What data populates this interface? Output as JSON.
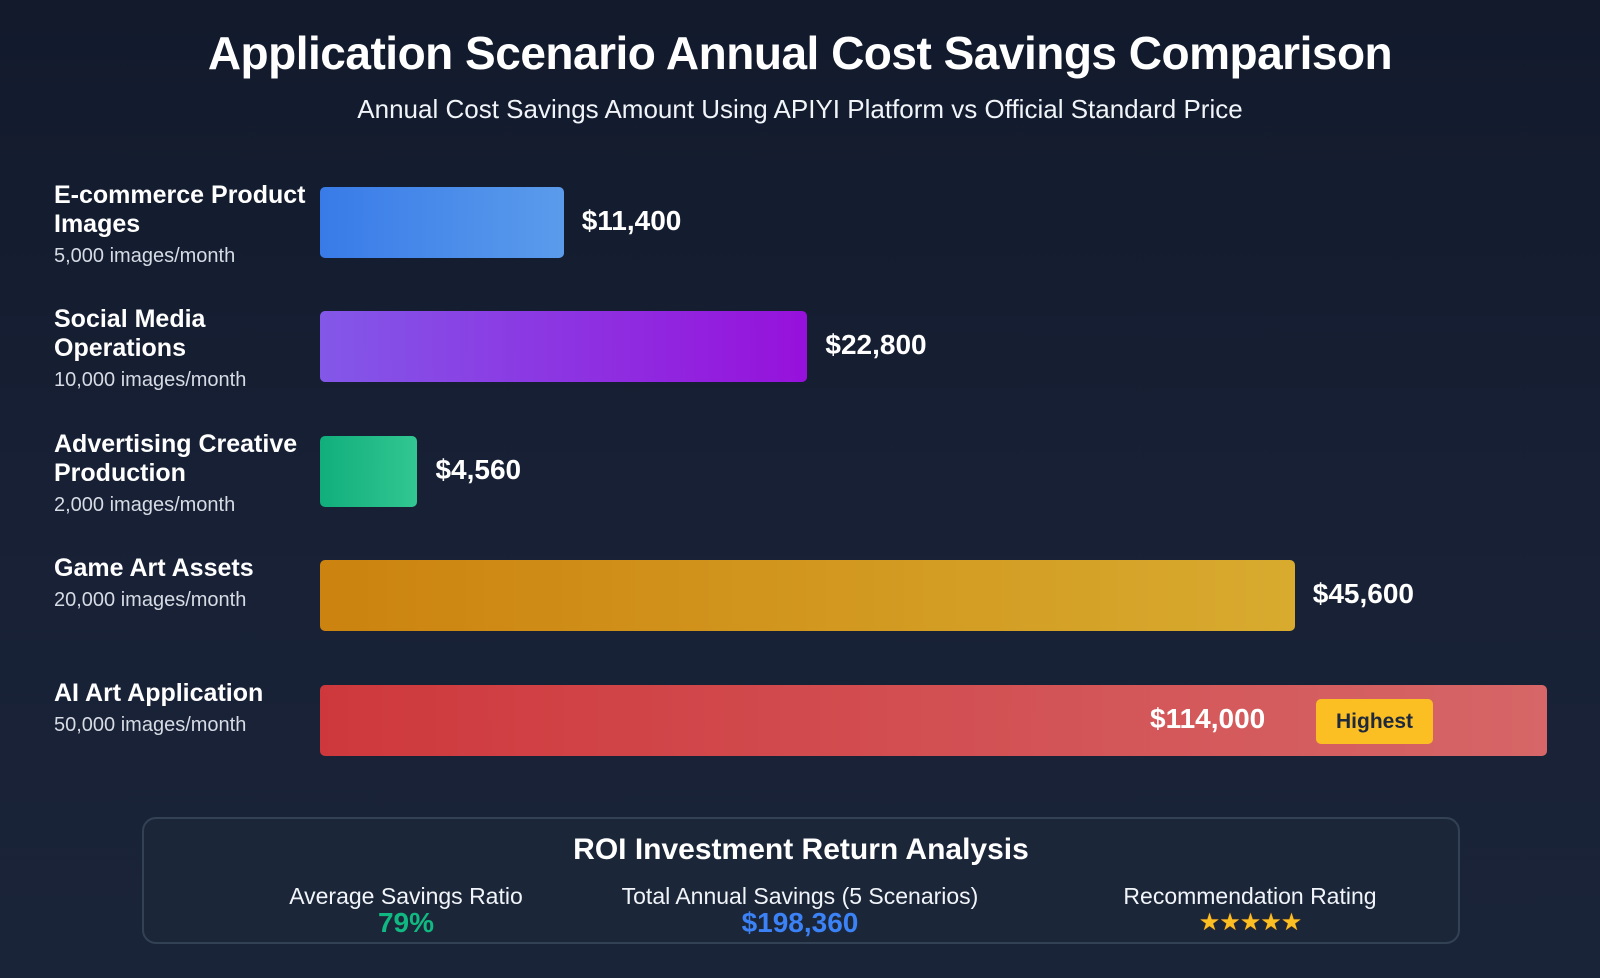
{
  "chart_data": {
    "type": "bar",
    "orientation": "horizontal",
    "title": "Application Scenario Annual Cost Savings Comparison",
    "subtitle": "Annual Cost Savings Amount Using APIYI Platform vs Official Standard Price",
    "categories": [
      "E-commerce Product Images",
      "Social Media Operations",
      "Advertising Creative Production",
      "Game Art Assets",
      "AI Art Application"
    ],
    "volumes": [
      "5,000 images/month",
      "10,000 images/month",
      "2,000 images/month",
      "20,000 images/month",
      "50,000 images/month"
    ],
    "values": [
      11400,
      22800,
      4560,
      45600,
      114000
    ],
    "value_labels": [
      "$11,400",
      "$22,800",
      "$4,560",
      "$45,600",
      "$114,000"
    ],
    "colors": [
      [
        "#3b82f6",
        "#60a5fa"
      ],
      [
        "#8b5cf6",
        "#a010e8"
      ],
      [
        "#10b981",
        "#34d399"
      ],
      [
        "#d98a0c",
        "#e6b52e"
      ],
      [
        "#dc3a3d",
        "#e46b6b"
      ]
    ],
    "highlight_label": "Highest",
    "grid": false
  },
  "summary": {
    "title": "ROI Investment Return Analysis",
    "stats": [
      {
        "label": "Average Savings Ratio",
        "value": "79%",
        "color": "#10b981"
      },
      {
        "label": "Total Annual Savings (5 Scenarios)",
        "value": "$198,360",
        "color": "#3b82f6"
      },
      {
        "label": "Recommendation Rating",
        "value": "★★★★★",
        "rating": 5
      }
    ]
  }
}
